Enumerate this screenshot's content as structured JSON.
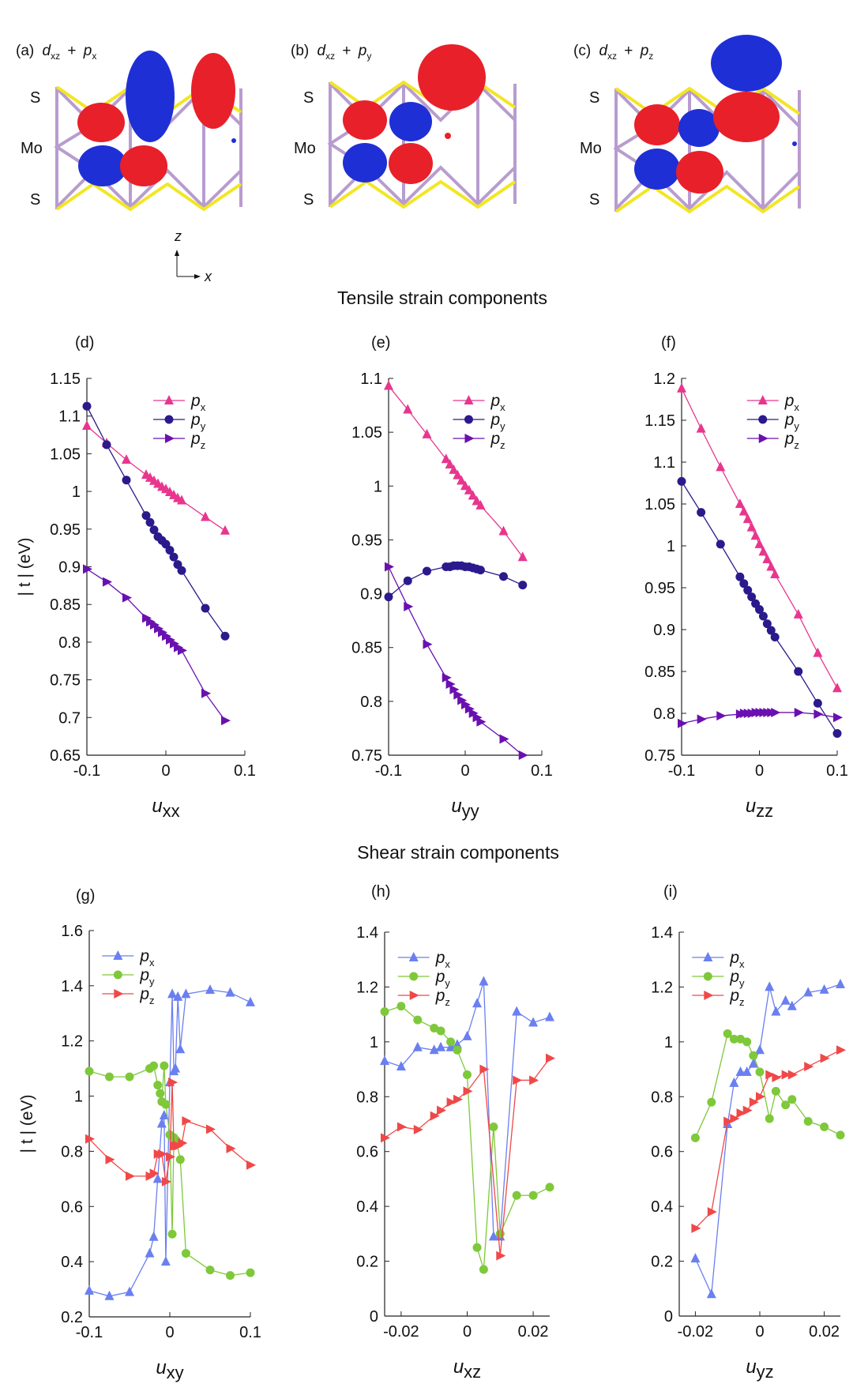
{
  "orbital_panels": [
    {
      "label": "(a)",
      "d": "d",
      "dsub": "xz",
      "plus": "+",
      "p": "p",
      "psub": "x",
      "atoms": [
        "S",
        "Mo",
        "S"
      ]
    },
    {
      "label": "(b)",
      "d": "d",
      "dsub": "xz",
      "plus": "+",
      "p": "p",
      "psub": "y",
      "atoms": [
        "S",
        "Mo",
        "S"
      ]
    },
    {
      "label": "(c)",
      "d": "d",
      "dsub": "xz",
      "plus": "+",
      "p": "p",
      "psub": "z",
      "atoms": [
        "S",
        "Mo",
        "S"
      ]
    }
  ],
  "axis_indicator": {
    "vertical": "z",
    "horizontal": "x"
  },
  "section_titles": {
    "tensile": "Tensile strain components",
    "shear": "Shear strain components"
  },
  "colors": {
    "tensile_px": "#e8368f",
    "tensile_py": "#2a1a8c",
    "tensile_pz": "#6a10b0",
    "shear_px": "#6a7ff0",
    "shear_py": "#7ec83a",
    "shear_pz": "#f04848",
    "lobe_red": "#e8202a",
    "lobe_blue": "#1f2fd6",
    "bond_yellow": "#f2e623",
    "bond_violet": "#b89ccf"
  },
  "chart_data": [
    {
      "type": "line",
      "panel": "(d)",
      "xlabel": "u",
      "xsub": "xx",
      "ylabel": "| t | (eV)",
      "xlim": [
        -0.1,
        0.1
      ],
      "ylim": [
        0.65,
        1.15
      ],
      "xticks": [
        "-0.1",
        "0",
        "0.1"
      ],
      "yticks": [
        "0.65",
        "0.7",
        "0.75",
        "0.8",
        "0.85",
        "0.9",
        "0.95",
        "1",
        "1.05",
        "1.1",
        "1.15"
      ],
      "series": [
        {
          "name": "p",
          "sub": "x",
          "marker": "triangle-up",
          "color": "#e8368f",
          "x": [
            -0.1,
            -0.075,
            -0.05,
            -0.025,
            -0.02,
            -0.015,
            -0.01,
            -0.005,
            0,
            0.005,
            0.01,
            0.015,
            0.02,
            0.05,
            0.075
          ],
          "y": [
            1.087,
            1.064,
            1.042,
            1.022,
            1.018,
            1.014,
            1.01,
            1.006,
            1.003,
            0.999,
            0.995,
            0.991,
            0.988,
            0.966,
            0.948
          ]
        },
        {
          "name": "p",
          "sub": "y",
          "marker": "circle",
          "color": "#2a1a8c",
          "x": [
            -0.1,
            -0.075,
            -0.05,
            -0.025,
            -0.02,
            -0.015,
            -0.01,
            -0.005,
            0,
            0.005,
            0.01,
            0.015,
            0.02,
            0.05,
            0.075
          ],
          "y": [
            1.113,
            1.062,
            1.015,
            0.968,
            0.959,
            0.949,
            0.94,
            0.935,
            0.93,
            0.922,
            0.913,
            0.903,
            0.895,
            0.845,
            0.808
          ]
        },
        {
          "name": "p",
          "sub": "z",
          "marker": "triangle-right",
          "color": "#6a10b0",
          "x": [
            -0.1,
            -0.075,
            -0.05,
            -0.025,
            -0.02,
            -0.015,
            -0.01,
            -0.005,
            0,
            0.005,
            0.01,
            0.015,
            0.02,
            0.05,
            0.075
          ],
          "y": [
            0.897,
            0.88,
            0.859,
            0.832,
            0.827,
            0.823,
            0.818,
            0.813,
            0.808,
            0.803,
            0.798,
            0.793,
            0.789,
            0.732,
            0.696
          ]
        }
      ]
    },
    {
      "type": "line",
      "panel": "(e)",
      "xlabel": "u",
      "xsub": "yy",
      "ylabel": "",
      "xlim": [
        -0.1,
        0.1
      ],
      "ylim": [
        0.75,
        1.1
      ],
      "xticks": [
        "-0.1",
        "0",
        "0.1"
      ],
      "yticks": [
        "0.75",
        "0.8",
        "0.85",
        "0.9",
        "0.95",
        "1",
        "1.05",
        "1.1"
      ],
      "series": [
        {
          "name": "p",
          "sub": "x",
          "marker": "triangle-up",
          "color": "#e8368f",
          "x": [
            -0.1,
            -0.075,
            -0.05,
            -0.025,
            -0.02,
            -0.015,
            -0.01,
            -0.005,
            0,
            0.005,
            0.01,
            0.015,
            0.02,
            0.05,
            0.075
          ],
          "y": [
            1.093,
            1.071,
            1.048,
            1.025,
            1.02,
            1.015,
            1.01,
            1.005,
            1.0,
            0.996,
            0.991,
            0.986,
            0.982,
            0.958,
            0.934
          ]
        },
        {
          "name": "p",
          "sub": "y",
          "marker": "circle",
          "color": "#2a1a8c",
          "x": [
            -0.1,
            -0.075,
            -0.05,
            -0.025,
            -0.02,
            -0.015,
            -0.01,
            -0.005,
            0,
            0.005,
            0.01,
            0.015,
            0.02,
            0.05,
            0.075
          ],
          "y": [
            0.897,
            0.912,
            0.921,
            0.925,
            0.925,
            0.926,
            0.926,
            0.926,
            0.925,
            0.925,
            0.924,
            0.923,
            0.922,
            0.916,
            0.908
          ]
        },
        {
          "name": "p",
          "sub": "z",
          "marker": "triangle-right",
          "color": "#6a10b0",
          "x": [
            -0.1,
            -0.075,
            -0.05,
            -0.025,
            -0.02,
            -0.015,
            -0.01,
            -0.005,
            0,
            0.005,
            0.01,
            0.015,
            0.02,
            0.05,
            0.075
          ],
          "y": [
            0.925,
            0.888,
            0.853,
            0.822,
            0.816,
            0.811,
            0.806,
            0.801,
            0.797,
            0.793,
            0.789,
            0.785,
            0.781,
            0.765,
            0.75
          ]
        }
      ]
    },
    {
      "type": "line",
      "panel": "(f)",
      "xlabel": "u",
      "xsub": "zz",
      "ylabel": "",
      "xlim": [
        -0.1,
        0.1
      ],
      "ylim": [
        0.75,
        1.2
      ],
      "xticks": [
        "-0.1",
        "0",
        "0.1"
      ],
      "yticks": [
        "0.75",
        "0.8",
        "0.85",
        "0.9",
        "0.95",
        "1",
        "1.05",
        "1.1",
        "1.15",
        "1.2"
      ],
      "series": [
        {
          "name": "p",
          "sub": "x",
          "marker": "triangle-up",
          "color": "#e8368f",
          "x": [
            -0.1,
            -0.075,
            -0.05,
            -0.025,
            -0.02,
            -0.015,
            -0.01,
            -0.005,
            0,
            0.005,
            0.01,
            0.015,
            0.02,
            0.05,
            0.075,
            0.1
          ],
          "y": [
            1.188,
            1.14,
            1.094,
            1.05,
            1.041,
            1.032,
            1.022,
            1.012,
            1.002,
            0.993,
            0.984,
            0.975,
            0.966,
            0.918,
            0.872,
            0.83
          ]
        },
        {
          "name": "p",
          "sub": "y",
          "marker": "circle",
          "color": "#2a1a8c",
          "x": [
            -0.1,
            -0.075,
            -0.05,
            -0.025,
            -0.02,
            -0.015,
            -0.01,
            -0.005,
            0,
            0.005,
            0.01,
            0.015,
            0.02,
            0.05,
            0.075,
            0.1
          ],
          "y": [
            1.077,
            1.04,
            1.002,
            0.963,
            0.955,
            0.947,
            0.939,
            0.931,
            0.924,
            0.916,
            0.907,
            0.899,
            0.891,
            0.85,
            0.812,
            0.776
          ]
        },
        {
          "name": "p",
          "sub": "z",
          "marker": "triangle-right",
          "color": "#6a10b0",
          "x": [
            -0.1,
            -0.075,
            -0.05,
            -0.025,
            -0.02,
            -0.015,
            -0.01,
            -0.005,
            0,
            0.005,
            0.01,
            0.015,
            0.02,
            0.05,
            0.075,
            0.1
          ],
          "y": [
            0.788,
            0.793,
            0.797,
            0.799,
            0.8,
            0.8,
            0.8,
            0.801,
            0.801,
            0.801,
            0.801,
            0.801,
            0.801,
            0.801,
            0.799,
            0.795
          ]
        }
      ]
    },
    {
      "type": "line",
      "panel": "(g)",
      "xlabel": "u",
      "xsub": "xy",
      "ylabel": "| t | (eV)",
      "xlim": [
        -0.1,
        0.1
      ],
      "ylim": [
        0.2,
        1.6
      ],
      "xticks": [
        "-0.1",
        "0",
        "0.1"
      ],
      "yticks": [
        "0.2",
        "0.4",
        "0.6",
        "0.8",
        "1",
        "1.2",
        "1.4",
        "1.6"
      ],
      "series": [
        {
          "name": "p",
          "sub": "x",
          "marker": "triangle-up",
          "color": "#6a7ff0",
          "x": [
            -0.1,
            -0.075,
            -0.05,
            -0.025,
            -0.02,
            -0.015,
            -0.01,
            -0.007,
            -0.005,
            0,
            0.003,
            0.005,
            0.007,
            0.01,
            0.013,
            0.02,
            0.05,
            0.075,
            0.1
          ],
          "y": [
            0.295,
            0.275,
            0.29,
            0.43,
            0.49,
            0.7,
            0.9,
            0.93,
            0.4,
            1.05,
            1.37,
            1.09,
            1.1,
            1.36,
            1.17,
            1.37,
            1.385,
            1.375,
            1.34
          ]
        },
        {
          "name": "p",
          "sub": "y",
          "marker": "circle",
          "color": "#7ec83a",
          "x": [
            -0.1,
            -0.075,
            -0.05,
            -0.025,
            -0.02,
            -0.015,
            -0.012,
            -0.01,
            -0.007,
            -0.005,
            0,
            0.003,
            0.005,
            0.008,
            0.013,
            0.02,
            0.05,
            0.075,
            0.1
          ],
          "y": [
            1.09,
            1.07,
            1.07,
            1.1,
            1.11,
            1.04,
            1.01,
            0.98,
            1.11,
            0.97,
            0.86,
            0.5,
            0.85,
            0.84,
            0.77,
            0.43,
            0.37,
            0.35,
            0.36
          ]
        },
        {
          "name": "p",
          "sub": "z",
          "marker": "triangle-right",
          "color": "#f04848",
          "x": [
            -0.1,
            -0.075,
            -0.05,
            -0.025,
            -0.02,
            -0.015,
            -0.01,
            -0.005,
            0,
            0.003,
            0.005,
            0.007,
            0.01,
            0.015,
            0.02,
            0.05,
            0.075,
            0.1
          ],
          "y": [
            0.845,
            0.77,
            0.71,
            0.71,
            0.72,
            0.79,
            0.79,
            0.69,
            0.78,
            1.05,
            0.82,
            0.82,
            0.82,
            0.83,
            0.91,
            0.88,
            0.81,
            0.75
          ]
        }
      ]
    },
    {
      "type": "line",
      "panel": "(h)",
      "xlabel": "u",
      "xsub": "xz",
      "ylabel": "",
      "xlim": [
        -0.025,
        0.025
      ],
      "ylim": [
        0,
        1.4
      ],
      "xticks": [
        "-0.02",
        "0",
        "0.02"
      ],
      "yticks": [
        "0",
        "0.2",
        "0.4",
        "0.6",
        "0.8",
        "1",
        "1.2",
        "1.4"
      ],
      "series": [
        {
          "name": "p",
          "sub": "x",
          "marker": "triangle-up",
          "color": "#6a7ff0",
          "x": [
            -0.025,
            -0.02,
            -0.015,
            -0.01,
            -0.008,
            -0.005,
            -0.003,
            0,
            0.003,
            0.005,
            0.008,
            0.01,
            0.015,
            0.02,
            0.025
          ],
          "y": [
            0.93,
            0.91,
            0.98,
            0.97,
            0.98,
            0.98,
            0.99,
            1.02,
            1.14,
            1.22,
            0.29,
            0.29,
            1.11,
            1.07,
            1.09
          ]
        },
        {
          "name": "p",
          "sub": "y",
          "marker": "circle",
          "color": "#7ec83a",
          "x": [
            -0.025,
            -0.02,
            -0.015,
            -0.01,
            -0.008,
            -0.005,
            -0.003,
            0,
            0.003,
            0.005,
            0.008,
            0.01,
            0.015,
            0.02,
            0.025
          ],
          "y": [
            1.11,
            1.13,
            1.08,
            1.05,
            1.04,
            1.0,
            0.97,
            0.88,
            0.25,
            0.17,
            0.69,
            0.3,
            0.44,
            0.44,
            0.47
          ]
        },
        {
          "name": "p",
          "sub": "z",
          "marker": "triangle-right",
          "color": "#f04848",
          "x": [
            -0.025,
            -0.02,
            -0.015,
            -0.01,
            -0.008,
            -0.005,
            -0.003,
            0,
            0.005,
            0.01,
            0.015,
            0.02,
            0.025
          ],
          "y": [
            0.65,
            0.69,
            0.68,
            0.73,
            0.75,
            0.78,
            0.79,
            0.82,
            0.9,
            0.22,
            0.86,
            0.86,
            0.94
          ]
        }
      ]
    },
    {
      "type": "line",
      "panel": "(i)",
      "xlabel": "u",
      "xsub": "yz",
      "ylabel": "",
      "xlim": [
        -0.025,
        0.025
      ],
      "ylim": [
        0,
        1.4
      ],
      "xticks": [
        "-0.02",
        "0",
        "0.02"
      ],
      "yticks": [
        "0",
        "0.2",
        "0.4",
        "0.6",
        "0.8",
        "1",
        "1.2",
        "1.4"
      ],
      "series": [
        {
          "name": "p",
          "sub": "x",
          "marker": "triangle-up",
          "color": "#6a7ff0",
          "x": [
            -0.02,
            -0.015,
            -0.01,
            -0.008,
            -0.006,
            -0.004,
            -0.002,
            0,
            0.003,
            0.005,
            0.008,
            0.01,
            0.015,
            0.02,
            0.025
          ],
          "y": [
            0.21,
            0.08,
            0.7,
            0.85,
            0.89,
            0.89,
            0.92,
            0.97,
            1.2,
            1.11,
            1.15,
            1.13,
            1.18,
            1.19,
            1.21
          ]
        },
        {
          "name": "p",
          "sub": "y",
          "marker": "circle",
          "color": "#7ec83a",
          "x": [
            -0.02,
            -0.015,
            -0.01,
            -0.008,
            -0.006,
            -0.004,
            -0.002,
            0,
            0.003,
            0.005,
            0.008,
            0.01,
            0.015,
            0.02,
            0.025
          ],
          "y": [
            0.65,
            0.78,
            1.03,
            1.01,
            1.01,
            1.0,
            0.95,
            0.89,
            0.72,
            0.82,
            0.77,
            0.79,
            0.71,
            0.69,
            0.66
          ]
        },
        {
          "name": "p",
          "sub": "z",
          "marker": "triangle-right",
          "color": "#f04848",
          "x": [
            -0.02,
            -0.015,
            -0.01,
            -0.008,
            -0.006,
            -0.004,
            -0.002,
            0,
            0.003,
            0.005,
            0.008,
            0.01,
            0.015,
            0.02,
            0.025
          ],
          "y": [
            0.32,
            0.38,
            0.71,
            0.72,
            0.74,
            0.75,
            0.78,
            0.8,
            0.88,
            0.87,
            0.88,
            0.88,
            0.91,
            0.94,
            0.97
          ]
        }
      ]
    }
  ]
}
